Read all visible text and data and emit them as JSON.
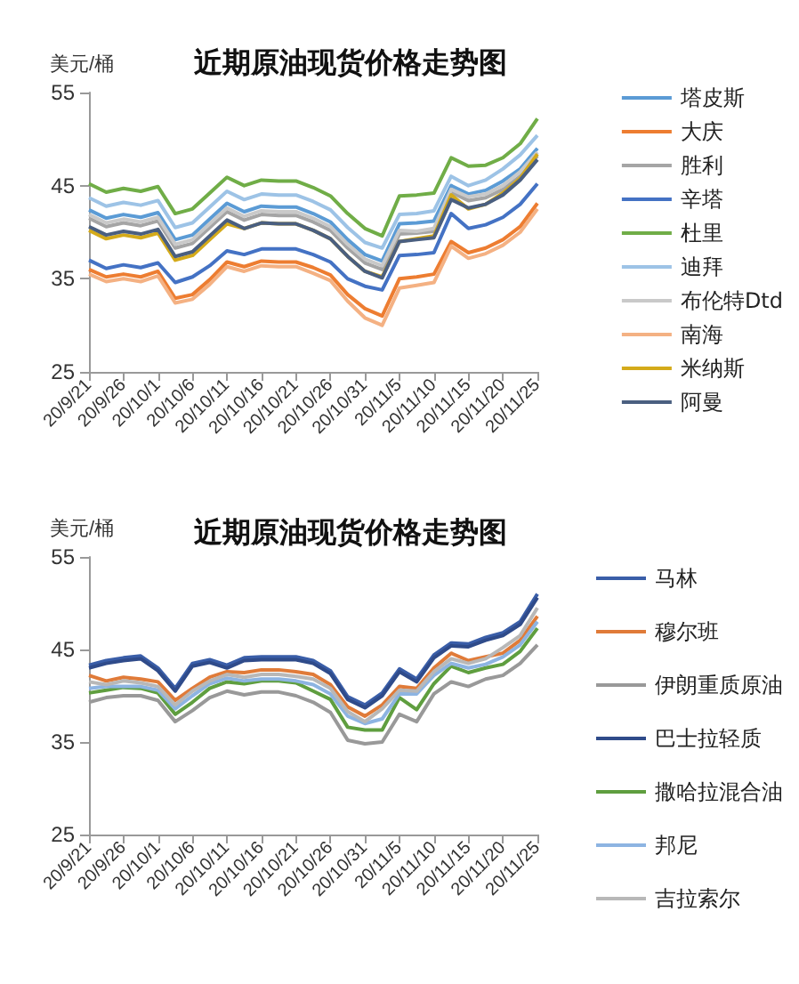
{
  "chart_data": [
    {
      "type": "line",
      "title": "近期原油现货价格走势图",
      "ylabel": "美元/桶",
      "legend": "right",
      "marker": "none",
      "line_style": "solid",
      "grid": false,
      "ylim": [
        25,
        55
      ],
      "yticks": [
        25,
        35,
        45,
        55
      ],
      "categories": [
        "20/9/21",
        null,
        "20/9/26",
        null,
        "20/10/1",
        null,
        "20/10/6",
        null,
        "20/10/11",
        null,
        "20/10/16",
        null,
        "20/10/21",
        null,
        "20/10/26",
        null,
        "20/10/31",
        null,
        "20/11/5",
        null,
        "20/11/10",
        null,
        "20/11/15",
        null,
        "20/11/20",
        null,
        "20/11/25"
      ],
      "series": [
        {
          "name": "塔皮斯",
          "color": "#5b9bd5",
          "values": [
            42.4,
            41.5,
            41.9,
            41.6,
            42.1,
            39.2,
            39.7,
            41.4,
            43.1,
            42.2,
            42.8,
            42.7,
            42.7,
            42.0,
            41.1,
            39.2,
            37.6,
            36.9,
            40.9,
            41.0,
            41.2,
            45.0,
            44.1,
            44.5,
            45.5,
            46.8,
            49.0
          ]
        },
        {
          "name": "大庆",
          "color": "#ed7d31",
          "values": [
            36.0,
            35.2,
            35.5,
            35.2,
            35.8,
            32.9,
            33.3,
            34.9,
            36.8,
            36.3,
            36.9,
            36.8,
            36.8,
            36.2,
            35.4,
            33.3,
            31.8,
            31.0,
            35.0,
            35.2,
            35.5,
            39.0,
            37.8,
            38.3,
            39.2,
            40.6,
            43.1
          ]
        },
        {
          "name": "胜利",
          "color": "#a5a5a5",
          "values": [
            41.5,
            40.6,
            41.0,
            40.7,
            41.2,
            38.3,
            38.8,
            40.5,
            42.2,
            41.3,
            41.9,
            41.8,
            41.8,
            41.1,
            40.2,
            38.3,
            36.7,
            36.0,
            39.8,
            39.9,
            40.1,
            44.3,
            43.4,
            43.7,
            44.6,
            46.0,
            48.2
          ]
        },
        {
          "name": "辛塔",
          "color": "#4472c4",
          "values": [
            37.0,
            36.1,
            36.5,
            36.2,
            36.7,
            34.6,
            35.2,
            36.4,
            38.0,
            37.6,
            38.2,
            38.2,
            38.2,
            37.6,
            36.8,
            35.0,
            34.2,
            33.8,
            37.5,
            37.6,
            37.8,
            42.0,
            40.4,
            40.8,
            41.6,
            43.0,
            45.2
          ]
        },
        {
          "name": "杜里",
          "color": "#70ad47",
          "values": [
            45.2,
            44.3,
            44.7,
            44.4,
            44.9,
            42.0,
            42.5,
            44.2,
            45.9,
            45.0,
            45.6,
            45.5,
            45.5,
            44.8,
            43.9,
            42.0,
            40.4,
            39.6,
            43.9,
            44.0,
            44.2,
            48.0,
            47.1,
            47.2,
            48.0,
            49.5,
            52.2
          ]
        },
        {
          "name": "迪拜",
          "color": "#9dc3e6",
          "values": [
            43.7,
            42.8,
            43.2,
            42.9,
            43.4,
            40.5,
            41.0,
            42.7,
            44.4,
            43.5,
            44.1,
            44.0,
            44.0,
            43.3,
            42.4,
            40.5,
            38.9,
            38.3,
            41.9,
            42.0,
            42.3,
            46.0,
            45.0,
            45.6,
            46.8,
            48.3,
            50.4
          ]
        },
        {
          "name": "布伦特Dtd",
          "color": "#c9c9c9",
          "values": [
            41.9,
            41.0,
            41.4,
            41.1,
            41.6,
            38.7,
            39.2,
            40.9,
            42.6,
            41.7,
            42.3,
            42.2,
            42.2,
            41.5,
            40.6,
            38.7,
            37.1,
            36.4,
            40.2,
            40.1,
            40.4,
            44.6,
            43.8,
            44.1,
            45.0,
            46.5,
            48.6
          ]
        },
        {
          "name": "南海",
          "color": "#f4b183",
          "values": [
            35.5,
            34.7,
            35.0,
            34.7,
            35.3,
            32.4,
            32.8,
            34.4,
            36.3,
            35.8,
            36.4,
            36.3,
            36.3,
            35.6,
            34.8,
            32.6,
            30.8,
            30.0,
            34.0,
            34.3,
            34.6,
            38.5,
            37.2,
            37.7,
            38.6,
            40.0,
            42.5
          ]
        },
        {
          "name": "米纳斯",
          "color": "#d4aa1a",
          "values": [
            40.2,
            39.3,
            39.7,
            39.4,
            39.9,
            37.0,
            37.5,
            39.2,
            40.9,
            40.4,
            41.0,
            40.9,
            40.9,
            40.2,
            39.3,
            37.4,
            35.8,
            35.2,
            39.0,
            39.3,
            39.6,
            44.0,
            42.5,
            43.0,
            44.2,
            45.8,
            48.4
          ]
        },
        {
          "name": "阿曼",
          "color": "#4a5f80",
          "values": [
            40.6,
            39.7,
            40.1,
            39.8,
            40.3,
            37.4,
            37.9,
            39.6,
            41.3,
            40.4,
            41.0,
            40.9,
            40.9,
            40.2,
            39.3,
            37.4,
            35.8,
            35.1,
            39.0,
            39.2,
            39.4,
            43.5,
            42.6,
            43.0,
            44.0,
            45.6,
            47.8
          ]
        }
      ]
    },
    {
      "type": "line",
      "title": "近期原油现货价格走势图",
      "ylabel": "美元/桶",
      "legend": "right",
      "marker": "none",
      "line_style": "solid",
      "grid": false,
      "ylim": [
        25,
        55
      ],
      "yticks": [
        25,
        35,
        45,
        55
      ],
      "categories": [
        "20/9/21",
        null,
        "20/9/26",
        null,
        "20/10/1",
        null,
        "20/10/6",
        null,
        "20/10/11",
        null,
        "20/10/16",
        null,
        "20/10/21",
        null,
        "20/10/26",
        null,
        "20/10/31",
        null,
        "20/11/5",
        null,
        "20/11/10",
        null,
        "20/11/15",
        null,
        "20/11/20",
        null,
        "20/11/25"
      ],
      "series": [
        {
          "name": "马林",
          "color": "#3a5ea8",
          "values": [
            43.3,
            43.8,
            44.1,
            44.3,
            43.0,
            40.8,
            43.5,
            43.9,
            43.3,
            44.1,
            44.2,
            44.2,
            44.2,
            43.8,
            42.7,
            39.9,
            39.0,
            40.3,
            42.9,
            41.8,
            44.4,
            45.7,
            45.6,
            46.3,
            46.8,
            48.0,
            51.0
          ]
        },
        {
          "name": "穆尔班",
          "color": "#e07b39",
          "values": [
            42.2,
            41.6,
            42.0,
            41.8,
            41.5,
            39.5,
            40.8,
            42.0,
            42.6,
            42.5,
            42.8,
            42.8,
            42.6,
            42.3,
            41.2,
            38.8,
            37.8,
            39.0,
            41.0,
            40.8,
            43.0,
            44.6,
            43.8,
            44.2,
            44.6,
            46.0,
            48.6
          ]
        },
        {
          "name": "伊朗重质原油",
          "color": "#999999",
          "values": [
            39.3,
            39.8,
            40.0,
            40.0,
            39.5,
            37.2,
            38.4,
            39.8,
            40.5,
            40.1,
            40.4,
            40.4,
            40.0,
            39.3,
            38.2,
            35.2,
            34.8,
            35.0,
            38.0,
            37.2,
            40.2,
            41.5,
            41.0,
            41.8,
            42.2,
            43.5,
            45.5
          ]
        },
        {
          "name": "巴士拉轻质",
          "color": "#2f4b8a",
          "values": [
            43.0,
            43.5,
            43.8,
            44.0,
            42.7,
            40.5,
            43.2,
            43.6,
            43.0,
            43.8,
            43.9,
            43.9,
            43.9,
            43.5,
            42.4,
            39.6,
            38.7,
            40.0,
            42.6,
            41.5,
            44.1,
            45.4,
            45.3,
            46.0,
            46.5,
            47.7,
            50.6
          ]
        },
        {
          "name": "撒哈拉混合油",
          "color": "#5f9e3f",
          "values": [
            40.3,
            40.6,
            40.9,
            40.8,
            40.3,
            38.0,
            39.3,
            40.8,
            41.5,
            41.3,
            41.6,
            41.6,
            41.4,
            40.5,
            39.6,
            36.6,
            36.3,
            36.3,
            39.8,
            38.5,
            41.3,
            43.2,
            42.5,
            43.0,
            43.4,
            44.8,
            47.3
          ]
        },
        {
          "name": "邦尼",
          "color": "#8db4e2",
          "values": [
            40.8,
            41.0,
            41.0,
            41.0,
            40.6,
            38.6,
            40.0,
            41.3,
            41.9,
            41.6,
            41.8,
            41.8,
            41.6,
            41.2,
            40.2,
            37.8,
            37.0,
            37.5,
            40.2,
            40.2,
            42.2,
            43.5,
            43.0,
            43.4,
            44.2,
            45.5,
            48.0
          ]
        },
        {
          "name": "吉拉索尔",
          "color": "#b8b8b8",
          "values": [
            41.5,
            41.2,
            41.6,
            41.4,
            41.0,
            39.0,
            40.5,
            41.6,
            42.3,
            42.0,
            42.3,
            42.3,
            42.1,
            41.8,
            40.8,
            38.3,
            37.2,
            38.6,
            40.6,
            40.5,
            42.6,
            44.0,
            43.5,
            44.0,
            45.2,
            46.5,
            49.5
          ]
        }
      ]
    }
  ]
}
